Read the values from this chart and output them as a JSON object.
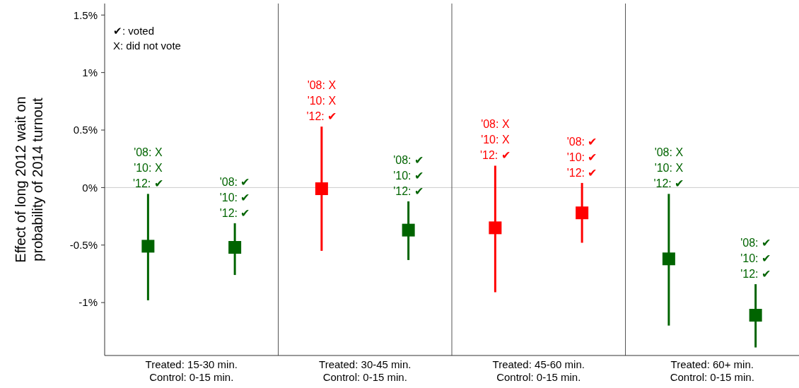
{
  "chart_data": {
    "type": "scatter",
    "ylabel": "Effect of long 2012 wait on\nprobability of 2014 turnout",
    "categories": [
      "Treated: 15-30 min.\nControl: 0-15 min.",
      "Treated: 30-45 min.\nControl: 0-15 min.",
      "Treated: 45-60 min.\nControl: 0-15 min.",
      "Treated: 60+ min.\nControl: 0-15 min."
    ],
    "series": [
      {
        "colors": [
          "#006400",
          "#ff0000",
          "#ff0000",
          "#006400"
        ],
        "values": [
          -0.51,
          -0.01,
          -0.35,
          -0.62
        ],
        "errors": [
          [
            -0.98,
            -0.055
          ],
          [
            -0.55,
            0.53
          ],
          [
            -0.91,
            0.19
          ],
          [
            -1.2,
            -0.055
          ]
        ]
      },
      {
        "colors": [
          "#006400",
          "#006400",
          "#ff0000",
          "#006400"
        ],
        "values": [
          -0.52,
          -0.37,
          -0.22,
          -1.11
        ],
        "errors": [
          [
            -0.76,
            -0.31
          ],
          [
            -0.63,
            -0.12
          ],
          [
            -0.48,
            0.04
          ],
          [
            -1.39,
            -0.84
          ]
        ]
      }
    ],
    "marker": "square",
    "ylim": [
      -1.46,
      1.6
    ],
    "yticks": [
      {
        "value": -1,
        "label": "-1%"
      },
      {
        "value": -0.5,
        "label": "-0.5%"
      },
      {
        "value": 0,
        "label": "0%"
      },
      {
        "value": 0.5,
        "label": "0.5%"
      },
      {
        "value": 1,
        "label": "1%"
      },
      {
        "value": 1.5,
        "label": "1.5%"
      }
    ],
    "ref_lines": [
      {
        "axis": "y",
        "value": 0,
        "color": "#cccccc"
      }
    ],
    "annotations": [
      "✔: voted",
      "X: did not vote",
      "'08: X\n'10: X\n'12: ✔",
      "'08: ✔\n'10: ✔\n'12: ✔",
      "'08: X\n'10: X\n'12: ✔",
      "'08: ✔\n'10: ✔\n'12: ✔",
      "'08: X\n'10: X\n'12: ✔",
      "'08: ✔\n'10: ✔\n'12: ✔",
      "'08: X\n'10: X\n'12: ✔",
      "'08: ✔\n'10: ✔\n'12: ✔"
    ]
  }
}
